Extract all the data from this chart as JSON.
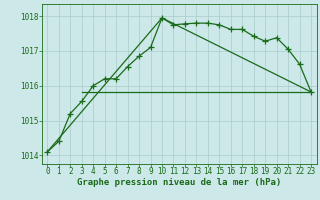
{
  "main_line": [
    [
      0,
      1014.1
    ],
    [
      1,
      1014.4
    ],
    [
      2,
      1015.2
    ],
    [
      3,
      1015.55
    ],
    [
      4,
      1016.0
    ],
    [
      5,
      1016.2
    ],
    [
      6,
      1016.2
    ],
    [
      7,
      1016.55
    ],
    [
      8,
      1016.85
    ],
    [
      9,
      1017.1
    ],
    [
      10,
      1017.95
    ],
    [
      11,
      1017.75
    ],
    [
      12,
      1017.78
    ],
    [
      13,
      1017.8
    ],
    [
      14,
      1017.8
    ],
    [
      15,
      1017.75
    ],
    [
      16,
      1017.62
    ],
    [
      17,
      1017.62
    ],
    [
      18,
      1017.42
    ],
    [
      19,
      1017.28
    ],
    [
      20,
      1017.38
    ],
    [
      21,
      1017.05
    ],
    [
      22,
      1016.62
    ],
    [
      23,
      1015.82
    ]
  ],
  "triangle_line": [
    [
      0,
      1014.1
    ],
    [
      10,
      1017.95
    ],
    [
      23,
      1015.82
    ]
  ],
  "flat_line": [
    [
      3,
      1015.82
    ],
    [
      9,
      1015.82
    ],
    [
      15,
      1015.82
    ],
    [
      20,
      1015.82
    ],
    [
      23,
      1015.82
    ]
  ],
  "ylim": [
    1013.75,
    1018.35
  ],
  "xlim": [
    -0.5,
    23.5
  ],
  "yticks": [
    1014,
    1015,
    1016,
    1017,
    1018
  ],
  "xticks": [
    0,
    1,
    2,
    3,
    4,
    5,
    6,
    7,
    8,
    9,
    10,
    11,
    12,
    13,
    14,
    15,
    16,
    17,
    18,
    19,
    20,
    21,
    22,
    23
  ],
  "xlabel": "Graphe pression niveau de la mer (hPa)",
  "line_color": "#1a6b1a",
  "bg_color": "#cce8e8",
  "grid_color": "#aacccc",
  "text_color": "#1a6b1a",
  "marker": "+",
  "marker_size": 4,
  "linewidth": 0.9,
  "xlabel_fontsize": 6.5,
  "tick_fontsize": 5.5
}
